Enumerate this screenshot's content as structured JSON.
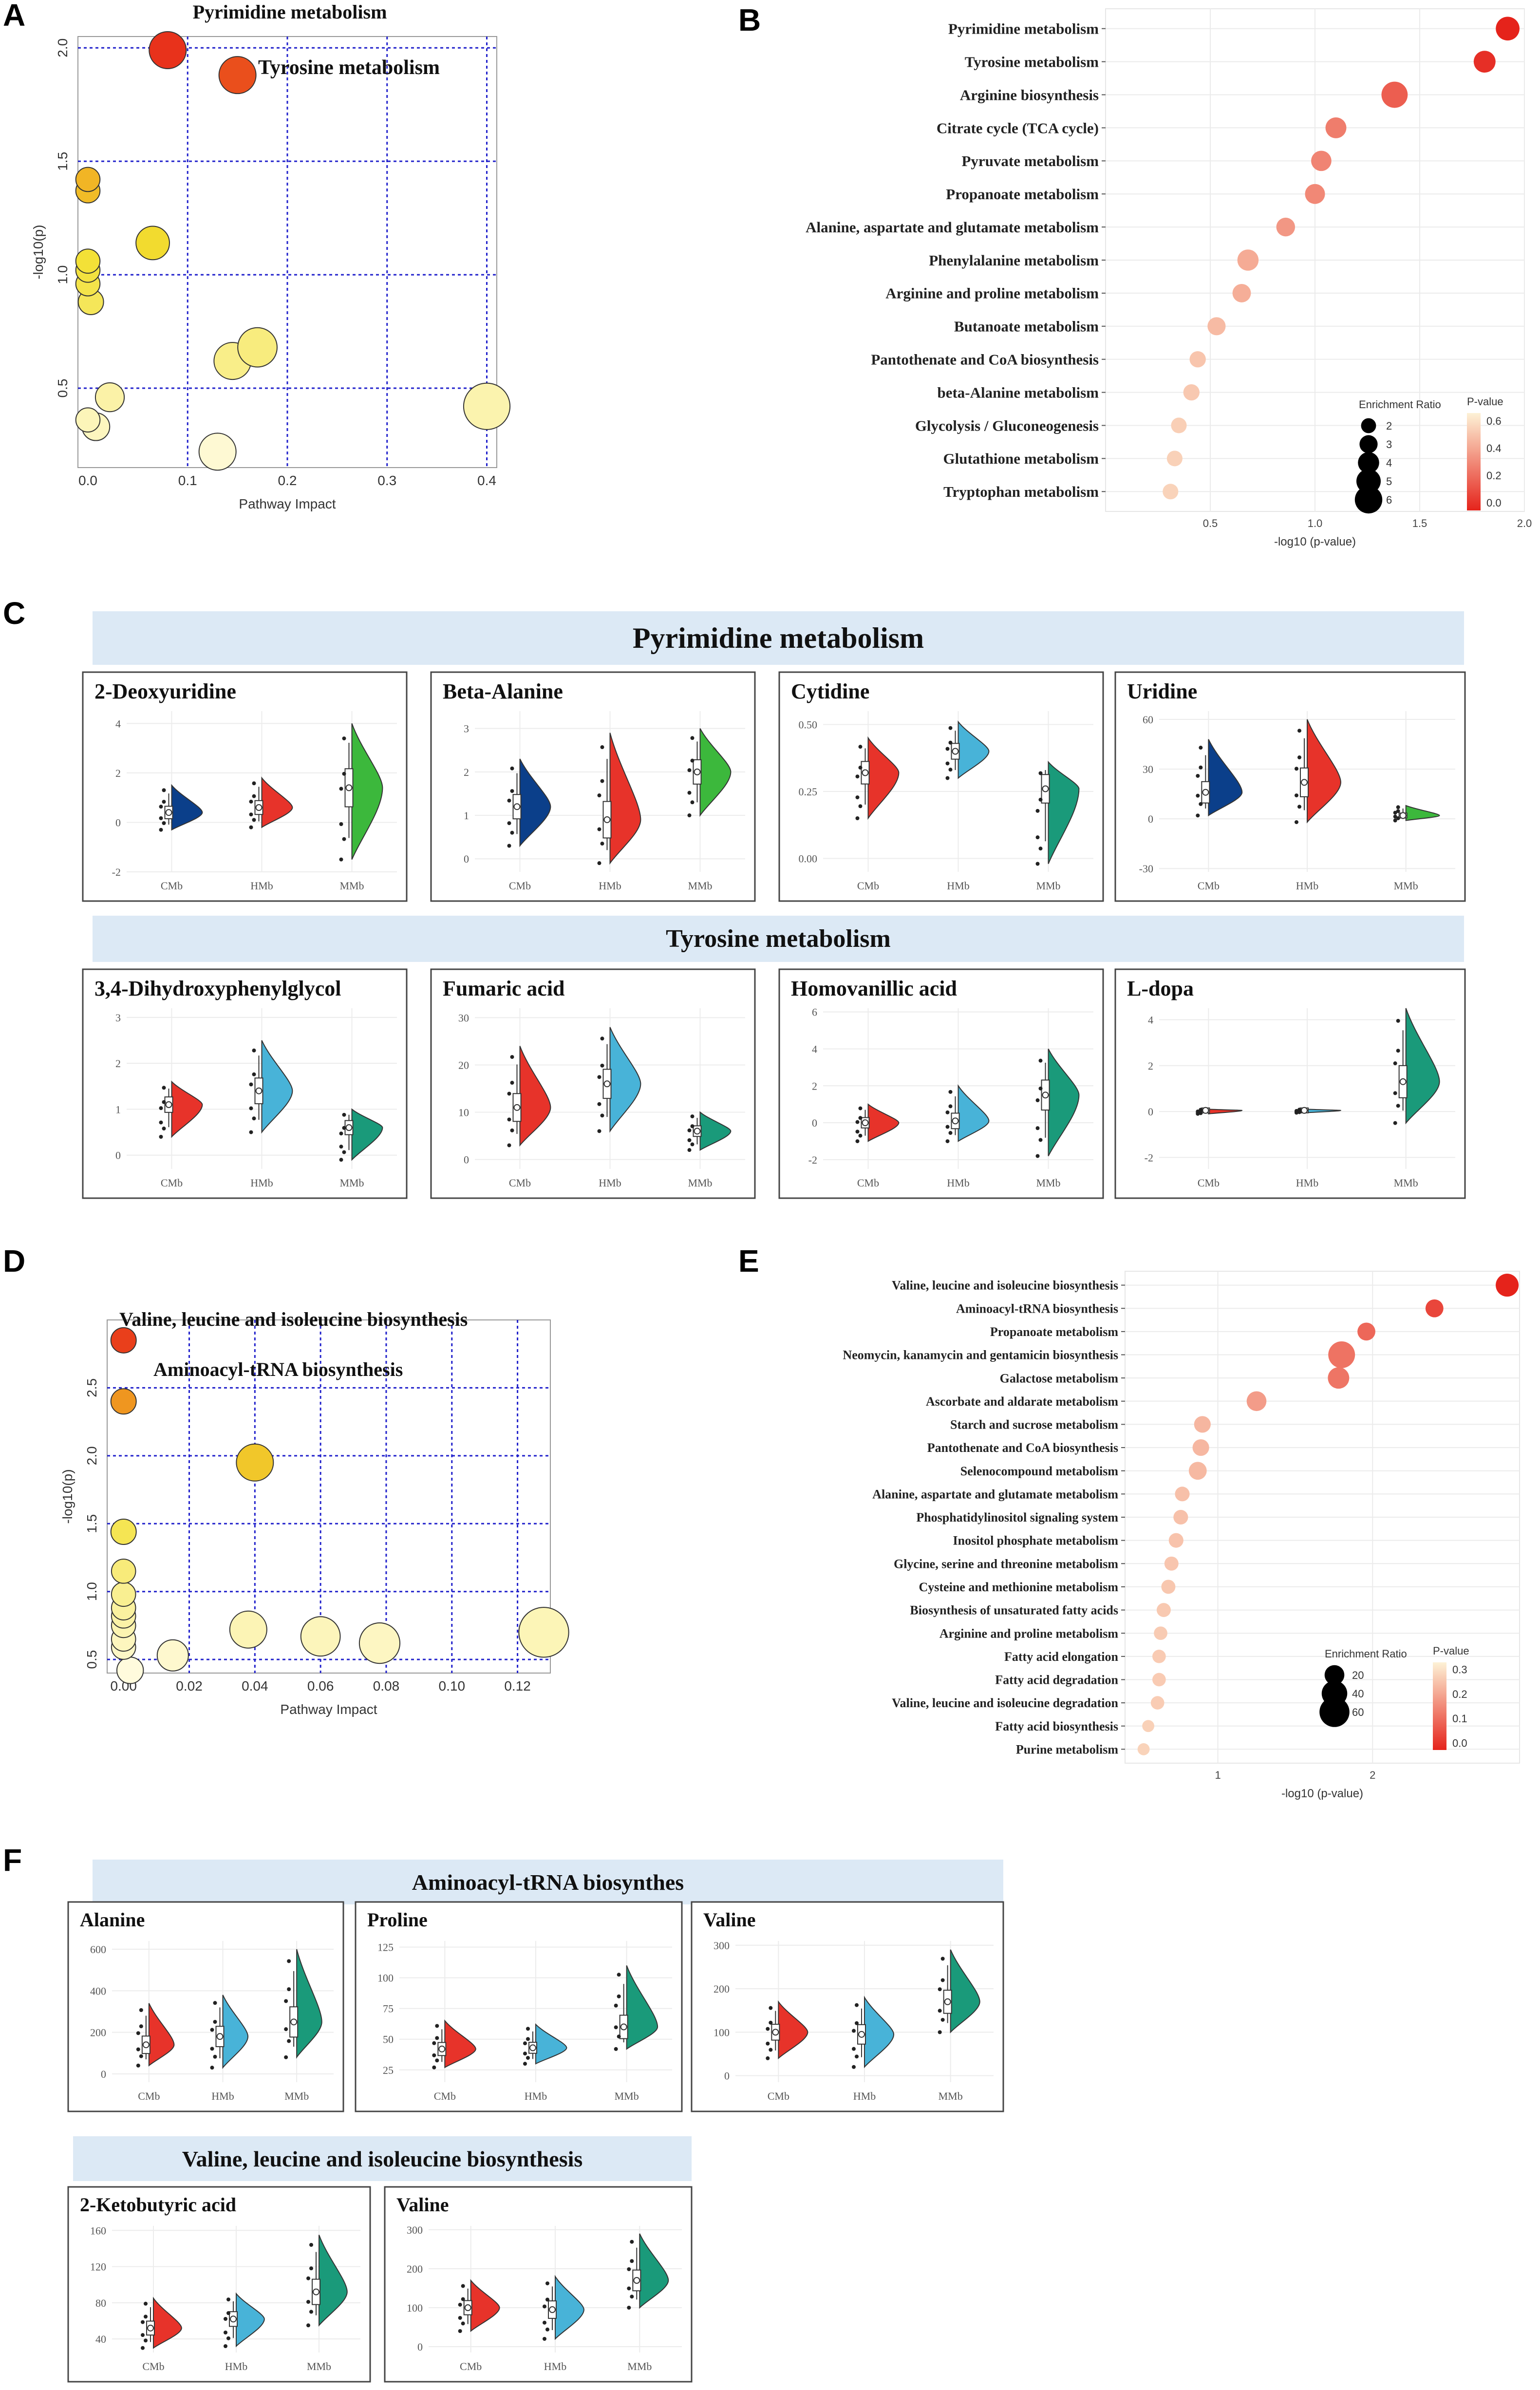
{
  "panels": {
    "a": "A",
    "b": "B",
    "c": "C",
    "d": "D",
    "e": "E",
    "f": "F"
  },
  "colors": {
    "red": "#e7332a",
    "orange": "#f0a020",
    "yellow": "#f2e030",
    "navy": "#0b3f8a",
    "sky": "#48b3d8",
    "green": "#1a9a7a",
    "lime": "#3cb83c",
    "grid": "#2222cc"
  },
  "banners": {
    "c1": "Pyrimidine metabolism",
    "c2": "Tyrosine metabolism",
    "f1": "Aminoacyl-tRNA biosynthes",
    "f2": "Valine, leucine and isoleucine biosynthesis"
  },
  "chart_data": [
    {
      "id": "A",
      "type": "scatter",
      "title": "",
      "xlabel": "Pathway Impact",
      "ylabel": "-log10(p)",
      "xlim": [
        -0.01,
        0.41
      ],
      "ylim": [
        0.15,
        2.05
      ],
      "xticks": [
        "0.0",
        "0.1",
        "0.2",
        "0.3",
        "0.4"
      ],
      "yticks": [
        "0.5",
        "1.0",
        "1.5",
        "2.0"
      ],
      "annotations": [
        "Pyrimidine metabolism",
        "Tyrosine metabolism"
      ],
      "points": [
        {
          "x": 0.08,
          "y": 1.99,
          "s": 1.0
        },
        {
          "x": 0.15,
          "y": 1.88,
          "s": 1.0
        },
        {
          "x": 0.0,
          "y": 1.42,
          "s": 0.45
        },
        {
          "x": 0.0,
          "y": 1.37,
          "s": 0.45
        },
        {
          "x": 0.065,
          "y": 1.14,
          "s": 0.85
        },
        {
          "x": 0.0,
          "y": 1.06,
          "s": 0.45
        },
        {
          "x": 0.0,
          "y": 1.02,
          "s": 0.45
        },
        {
          "x": 0.0,
          "y": 0.96,
          "s": 0.45
        },
        {
          "x": 0.003,
          "y": 0.88,
          "s": 0.5
        },
        {
          "x": 0.17,
          "y": 0.68,
          "s": 1.1
        },
        {
          "x": 0.145,
          "y": 0.62,
          "s": 1.0
        },
        {
          "x": 0.022,
          "y": 0.46,
          "s": 0.65
        },
        {
          "x": 0.4,
          "y": 0.42,
          "s": 1.4
        },
        {
          "x": 0.0,
          "y": 0.36,
          "s": 0.45
        },
        {
          "x": 0.008,
          "y": 0.33,
          "s": 0.6
        },
        {
          "x": 0.13,
          "y": 0.22,
          "s": 1.0
        }
      ]
    },
    {
      "id": "B",
      "type": "scatter",
      "xlabel": "-log10 (p-value)",
      "xlim": [
        0.0,
        2.0
      ],
      "xticks": [
        "0.5",
        "1.0",
        "1.5",
        "2.0"
      ],
      "legend_size_title": "Enrichment Ratio",
      "legend_color_title": "P-value",
      "legend_sizes": [
        "2",
        "3",
        "4",
        "5",
        "6"
      ],
      "legend_colors": [
        "0.6",
        "0.4",
        "0.2",
        "0.0"
      ],
      "categories": [
        "Pyrimidine metabolism",
        "Tyrosine metabolism",
        "Arginine biosynthesis",
        "Citrate cycle (TCA cycle)",
        "Pyruvate metabolism",
        "Propanoate metabolism",
        "Alanine, aspartate and glutamate metabolism",
        "Phenylalanine metabolism",
        "Arginine and proline metabolism",
        "Butanoate metabolism",
        "Pantothenate and CoA biosynthesis",
        "beta-Alanine metabolism",
        "Glycolysis / Gluconeogenesis",
        "Glutathione metabolism",
        "Tryptophan metabolism"
      ],
      "values": [
        1.92,
        1.81,
        1.38,
        1.1,
        1.03,
        1.0,
        0.86,
        0.68,
        0.65,
        0.53,
        0.44,
        0.41,
        0.35,
        0.33,
        0.31
      ],
      "ratios": [
        4.8,
        4.2,
        5.6,
        3.9,
        3.7,
        3.6,
        3.2,
        4.0,
        3.1,
        3.0,
        2.4,
        2.4,
        2.2,
        2.2,
        2.2
      ]
    },
    {
      "id": "C",
      "type": "violin",
      "groups": [
        "CMb",
        "HMb",
        "MMb"
      ],
      "plots": [
        {
          "title": "2-Deoxyuridine",
          "yticks": [
            "-2",
            "0",
            "2",
            "4"
          ],
          "ylim": [
            -2,
            4.5
          ],
          "series": [
            {
              "color": "#0b3f8a",
              "med": 0.4,
              "lo": -0.3,
              "hi": 1.5
            },
            {
              "color": "#e7332a",
              "med": 0.6,
              "lo": -0.2,
              "hi": 1.8
            },
            {
              "color": "#3cb83c",
              "med": 1.4,
              "lo": -1.5,
              "hi": 4.0
            }
          ]
        },
        {
          "title": "Beta-Alanine",
          "yticks": [
            "0",
            "1",
            "2",
            "3"
          ],
          "ylim": [
            -0.3,
            3.4
          ],
          "series": [
            {
              "color": "#0b3f8a",
              "med": 1.2,
              "lo": 0.3,
              "hi": 2.3
            },
            {
              "color": "#e7332a",
              "med": 0.9,
              "lo": -0.1,
              "hi": 2.9
            },
            {
              "color": "#3cb83c",
              "med": 2.0,
              "lo": 1.0,
              "hi": 3.0
            }
          ]
        },
        {
          "title": "Cytidine",
          "yticks": [
            "0.00",
            "0.25",
            "0.50"
          ],
          "ylim": [
            -0.05,
            0.55
          ],
          "series": [
            {
              "color": "#e7332a",
              "med": 0.32,
              "lo": 0.15,
              "hi": 0.45
            },
            {
              "color": "#48b3d8",
              "med": 0.4,
              "lo": 0.3,
              "hi": 0.51
            },
            {
              "color": "#1a9a7a",
              "med": 0.26,
              "lo": -0.02,
              "hi": 0.36
            }
          ]
        },
        {
          "title": "Uridine",
          "yticks": [
            "-30",
            "0",
            "30",
            "60"
          ],
          "ylim": [
            -32,
            65
          ],
          "series": [
            {
              "color": "#0b3f8a",
              "med": 16,
              "lo": 2,
              "hi": 48
            },
            {
              "color": "#e7332a",
              "med": 22,
              "lo": -2,
              "hi": 60
            },
            {
              "color": "#3cb83c",
              "med": 2,
              "lo": -1,
              "hi": 8
            }
          ]
        },
        {
          "title": "3,4-Dihydroxyphenylglycol",
          "yticks": [
            "0",
            "1",
            "2",
            "3"
          ],
          "ylim": [
            -0.3,
            3.2
          ],
          "series": [
            {
              "color": "#e7332a",
              "med": 1.1,
              "lo": 0.4,
              "hi": 1.6
            },
            {
              "color": "#48b3d8",
              "med": 1.4,
              "lo": 0.5,
              "hi": 2.5
            },
            {
              "color": "#1a9a7a",
              "med": 0.6,
              "lo": -0.1,
              "hi": 1.0
            }
          ]
        },
        {
          "title": "Fumaric acid",
          "yticks": [
            "0",
            "10",
            "20",
            "30"
          ],
          "ylim": [
            -2,
            32
          ],
          "series": [
            {
              "color": "#e7332a",
              "med": 11,
              "lo": 3,
              "hi": 24
            },
            {
              "color": "#48b3d8",
              "med": 16,
              "lo": 6,
              "hi": 28
            },
            {
              "color": "#1a9a7a",
              "med": 6,
              "lo": 2,
              "hi": 10
            }
          ]
        },
        {
          "title": "Homovanillic acid",
          "yticks": [
            "-2",
            "0",
            "2",
            "4",
            "6"
          ],
          "ylim": [
            -2.5,
            6.2
          ],
          "series": [
            {
              "color": "#e7332a",
              "med": 0.0,
              "lo": -1.0,
              "hi": 1.0
            },
            {
              "color": "#48b3d8",
              "med": 0.1,
              "lo": -1.0,
              "hi": 2.0
            },
            {
              "color": "#1a9a7a",
              "med": 1.5,
              "lo": -1.8,
              "hi": 4.0
            }
          ]
        },
        {
          "title": "L-dopa",
          "yticks": [
            "-2",
            "0",
            "2",
            "4"
          ],
          "ylim": [
            -2.5,
            4.5
          ],
          "series": [
            {
              "color": "#e7332a",
              "med": 0.05,
              "lo": -0.1,
              "hi": 0.1
            },
            {
              "color": "#48b3d8",
              "med": 0.05,
              "lo": -0.05,
              "hi": 0.1
            },
            {
              "color": "#1a9a7a",
              "med": 1.3,
              "lo": -0.5,
              "hi": 4.5
            }
          ]
        }
      ]
    },
    {
      "id": "D",
      "type": "scatter",
      "title": "",
      "xlabel": "Pathway Impact",
      "ylabel": "-log10(p)",
      "xlim": [
        -0.005,
        0.13
      ],
      "ylim": [
        0.4,
        3.0
      ],
      "xticks": [
        "0.00",
        "0.02",
        "0.04",
        "0.06",
        "0.08",
        "0.10",
        "0.12"
      ],
      "yticks": [
        "0.5",
        "1.0",
        "1.5",
        "2.0",
        "2.5"
      ],
      "annotations": [
        "Valine, leucine and isoleucine biosynthesis",
        "Aminoacyl-tRNA biosynthesis"
      ],
      "points": [
        {
          "x": 0.0,
          "y": 2.85,
          "s": 0.5
        },
        {
          "x": 0.0,
          "y": 2.4,
          "s": 0.5
        },
        {
          "x": 0.04,
          "y": 1.95,
          "s": 1.0
        },
        {
          "x": 0.0,
          "y": 1.44,
          "s": 0.5
        },
        {
          "x": 0.0,
          "y": 1.15,
          "s": 0.45
        },
        {
          "x": 0.0,
          "y": 0.98,
          "s": 0.45
        },
        {
          "x": 0.0,
          "y": 0.88,
          "s": 0.45
        },
        {
          "x": 0.0,
          "y": 0.82,
          "s": 0.45
        },
        {
          "x": 0.0,
          "y": 0.75,
          "s": 0.45
        },
        {
          "x": 0.038,
          "y": 0.72,
          "s": 1.0
        },
        {
          "x": 0.06,
          "y": 0.67,
          "s": 1.1
        },
        {
          "x": 0.128,
          "y": 0.7,
          "s": 1.55
        },
        {
          "x": 0.0,
          "y": 0.65,
          "s": 0.45
        },
        {
          "x": 0.078,
          "y": 0.62,
          "s": 1.15
        },
        {
          "x": 0.0,
          "y": 0.59,
          "s": 0.45
        },
        {
          "x": 0.015,
          "y": 0.53,
          "s": 0.75
        },
        {
          "x": 0.002,
          "y": 0.42,
          "s": 0.55
        }
      ]
    },
    {
      "id": "E",
      "type": "scatter",
      "xlabel": "-log10 (p-value)",
      "xlim": [
        0.4,
        2.95
      ],
      "xticks": [
        "1",
        "2"
      ],
      "legend_size_title": "Enrichment Ratio",
      "legend_color_title": "P-value",
      "legend_sizes": [
        "20",
        "40",
        "60"
      ],
      "legend_colors": [
        "0.3",
        "0.2",
        "0.1",
        "0.0"
      ],
      "categories": [
        "Valine, leucine and isoleucine biosynthesis",
        "Aminoacyl-tRNA biosynthesis",
        "Propanoate metabolism",
        "Neomycin, kanamycin and gentamicin biosynthesis",
        "Galactose metabolism",
        "Ascorbate and aldarate metabolism",
        "Starch and sucrose metabolism",
        "Pantothenate and CoA biosynthesis",
        "Selenocompound metabolism",
        "Alanine, aspartate and glutamate metabolism",
        "Phosphatidylinositol signaling system",
        "Inositol phosphate metabolism",
        "Glycine, serine and threonine metabolism",
        "Cysteine and methionine metabolism",
        "Biosynthesis of unsaturated fatty acids",
        "Arginine and proline metabolism",
        "Fatty acid elongation",
        "Fatty acid degradation",
        "Valine, leucine and isoleucine degradation",
        "Fatty acid biosynthesis",
        "Purine metabolism"
      ],
      "values": [
        2.87,
        2.4,
        1.96,
        1.8,
        1.78,
        1.25,
        0.9,
        0.89,
        0.87,
        0.77,
        0.76,
        0.73,
        0.7,
        0.68,
        0.65,
        0.63,
        0.62,
        0.62,
        0.61,
        0.55,
        0.52
      ],
      "ratios": [
        30,
        15,
        15,
        45,
        25,
        20,
        12,
        12,
        15,
        8,
        8,
        8,
        7,
        7,
        7,
        6,
        6,
        6,
        6,
        4,
        4
      ]
    },
    {
      "id": "F",
      "type": "violin",
      "groups": [
        "CMb",
        "HMb",
        "MMb"
      ],
      "plots": [
        {
          "title": "Alanine",
          "yticks": [
            "0",
            "200",
            "400",
            "600"
          ],
          "ylim": [
            -40,
            640
          ],
          "series": [
            {
              "color": "#e7332a",
              "med": 140,
              "lo": 40,
              "hi": 340
            },
            {
              "color": "#48b3d8",
              "med": 180,
              "lo": 30,
              "hi": 380
            },
            {
              "color": "#1a9a7a",
              "med": 250,
              "lo": 80,
              "hi": 600
            }
          ]
        },
        {
          "title": "Proline",
          "yticks": [
            "25",
            "50",
            "75",
            "100",
            "125"
          ],
          "ylim": [
            15,
            130
          ],
          "series": [
            {
              "color": "#e7332a",
              "med": 42,
              "lo": 27,
              "hi": 65
            },
            {
              "color": "#48b3d8",
              "med": 43,
              "lo": 30,
              "hi": 62
            },
            {
              "color": "#1a9a7a",
              "med": 60,
              "lo": 42,
              "hi": 110
            }
          ]
        },
        {
          "title": "Valine",
          "yticks": [
            "0",
            "100",
            "200",
            "300"
          ],
          "ylim": [
            -15,
            310
          ],
          "series": [
            {
              "color": "#e7332a",
              "med": 100,
              "lo": 40,
              "hi": 170
            },
            {
              "color": "#48b3d8",
              "med": 95,
              "lo": 20,
              "hi": 180
            },
            {
              "color": "#1a9a7a",
              "med": 170,
              "lo": 100,
              "hi": 290
            }
          ]
        },
        {
          "title": "2-Ketobutyric acid",
          "yticks": [
            "40",
            "80",
            "120",
            "160"
          ],
          "ylim": [
            25,
            165
          ],
          "series": [
            {
              "color": "#e7332a",
              "med": 52,
              "lo": 30,
              "hi": 85
            },
            {
              "color": "#48b3d8",
              "med": 62,
              "lo": 32,
              "hi": 90
            },
            {
              "color": "#1a9a7a",
              "med": 92,
              "lo": 55,
              "hi": 155
            }
          ]
        },
        {
          "title": "Valine",
          "yticks": [
            "0",
            "100",
            "200",
            "300"
          ],
          "ylim": [
            -15,
            310
          ],
          "series": [
            {
              "color": "#e7332a",
              "med": 100,
              "lo": 40,
              "hi": 170
            },
            {
              "color": "#48b3d8",
              "med": 95,
              "lo": 20,
              "hi": 180
            },
            {
              "color": "#1a9a7a",
              "med": 170,
              "lo": 100,
              "hi": 290
            }
          ]
        }
      ]
    }
  ]
}
